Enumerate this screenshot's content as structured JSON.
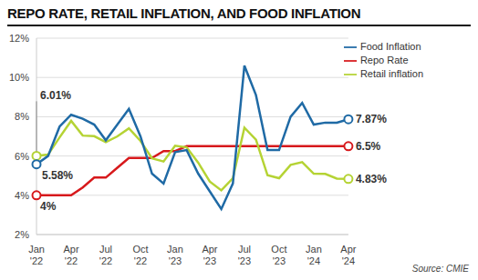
{
  "chart_data": {
    "type": "line",
    "title": "REPO RATE, RETAIL INFLATION, AND FOOD INFLATION",
    "source": "Source: CMIE",
    "categories": [
      "Jan '22",
      null,
      null,
      "Apr '22",
      null,
      null,
      "Jul '22",
      null,
      null,
      "Oct '22",
      null,
      null,
      "Jan '23",
      null,
      null,
      "Apr '23",
      null,
      null,
      "Jul '23",
      null,
      null,
      "Oct '23",
      null,
      null,
      "Jan '24",
      null,
      null,
      "Apr '24"
    ],
    "series": [
      {
        "name": "Repo Rate",
        "color": "#d7191c",
        "values": [
          4,
          4,
          4,
          4,
          4.4,
          4.9,
          4.9,
          5.4,
          5.9,
          5.9,
          5.9,
          6.25,
          6.25,
          6.5,
          6.5,
          6.5,
          6.5,
          6.5,
          6.5,
          6.5,
          6.5,
          6.5,
          6.5,
          6.5,
          6.5,
          6.5,
          6.5,
          6.5
        ],
        "value_labels": [
          "4%",
          null,
          null,
          null,
          null,
          null,
          null,
          null,
          null,
          null,
          null,
          null,
          null,
          null,
          null,
          null,
          null,
          null,
          null,
          null,
          null,
          null,
          null,
          null,
          null,
          null,
          null,
          "6.5%"
        ]
      },
      {
        "name": "Retail inflation",
        "color": "#b5d334",
        "values": [
          6.01,
          6.07,
          6.95,
          7.79,
          7.04,
          7.01,
          6.71,
          7.0,
          7.41,
          6.77,
          5.88,
          5.72,
          6.52,
          6.44,
          5.66,
          4.7,
          4.25,
          4.87,
          7.44,
          6.83,
          5.02,
          4.87,
          5.55,
          5.69,
          5.1,
          5.09,
          4.85,
          4.83
        ],
        "value_labels": [
          "6.01%",
          null,
          null,
          null,
          null,
          null,
          null,
          null,
          null,
          null,
          null,
          null,
          null,
          null,
          null,
          null,
          null,
          null,
          null,
          null,
          null,
          null,
          null,
          null,
          null,
          null,
          null,
          "4.83%"
        ]
      },
      {
        "name": "Food Inflation",
        "color": "#1f6aa5",
        "values": [
          5.58,
          6.0,
          7.5,
          8.1,
          7.9,
          7.6,
          6.8,
          7.6,
          8.4,
          7.0,
          5.1,
          4.6,
          6.2,
          6.3,
          5.1,
          4.2,
          3.3,
          4.6,
          10.6,
          9.1,
          6.3,
          6.3,
          8.0,
          8.7,
          7.6,
          7.7,
          7.7,
          7.87
        ],
        "value_labels": [
          "5.58%",
          null,
          null,
          null,
          null,
          null,
          null,
          null,
          null,
          null,
          null,
          null,
          null,
          null,
          null,
          null,
          null,
          null,
          null,
          null,
          null,
          null,
          null,
          null,
          null,
          null,
          null,
          "7.87%"
        ]
      }
    ],
    "ylim": [
      2,
      12
    ],
    "yticks": [
      {
        "value": 2,
        "label": "2%"
      },
      {
        "value": 4,
        "label": "4%"
      },
      {
        "value": 6,
        "label": "6%"
      },
      {
        "value": 8,
        "label": "8%"
      },
      {
        "value": 10,
        "label": "10%"
      },
      {
        "value": 12,
        "label": "12%"
      }
    ],
    "grid": true,
    "legend": "upper right",
    "data_labels": true
  }
}
